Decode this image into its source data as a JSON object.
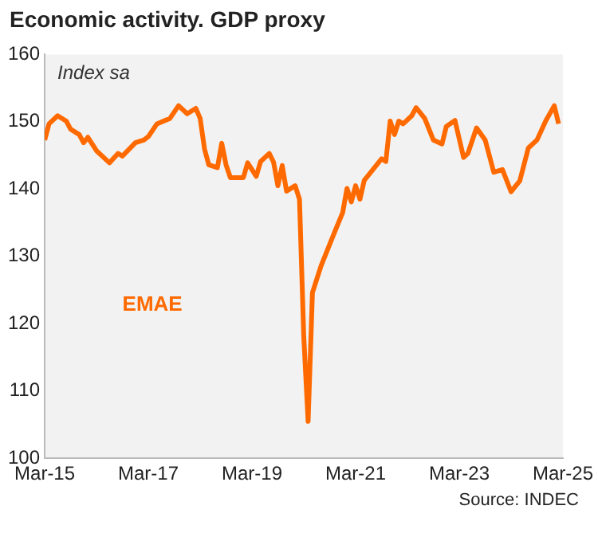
{
  "chart_data": {
    "type": "line",
    "title": "Economic activity. GDP proxy",
    "annotations": [
      "Index sa",
      "Source: INDEC"
    ],
    "x": [
      "2015-03",
      "2015-04",
      "2015-06",
      "2015-08",
      "2015-09",
      "2015-11",
      "2015-12",
      "2016-01",
      "2016-03",
      "2016-06",
      "2016-08",
      "2016-09",
      "2016-12",
      "2017-02",
      "2017-03",
      "2017-05",
      "2017-08",
      "2017-10",
      "2017-12",
      "2018-02",
      "2018-03",
      "2018-04",
      "2018-05",
      "2018-07",
      "2018-08",
      "2018-09",
      "2018-10",
      "2019-01",
      "2019-02",
      "2019-04",
      "2019-05",
      "2019-07",
      "2019-08",
      "2019-09",
      "2019-10",
      "2019-11",
      "2020-01",
      "2020-02",
      "2020-03",
      "2020-04",
      "2020-05",
      "2020-07",
      "2020-10",
      "2020-12",
      "2021-01",
      "2021-02",
      "2021-03",
      "2021-04",
      "2021-05",
      "2021-07",
      "2021-09",
      "2021-10",
      "2021-11",
      "2021-12",
      "2022-01",
      "2022-02",
      "2022-04",
      "2022-05",
      "2022-07",
      "2022-09",
      "2022-11",
      "2022-12",
      "2023-02",
      "2023-04",
      "2023-05",
      "2023-07",
      "2023-09",
      "2023-11",
      "2024-01",
      "2024-03",
      "2024-05",
      "2024-07",
      "2024-09",
      "2024-11",
      "2025-01",
      "2025-02"
    ],
    "series": [
      {
        "name": "EMAE",
        "color": "#ff6a00",
        "values": [
          147.3,
          149.7,
          150.9,
          150.1,
          148.9,
          148.1,
          146.9,
          147.7,
          145.7,
          143.9,
          145.3,
          144.9,
          146.9,
          147.3,
          147.8,
          149.7,
          150.5,
          152.4,
          151.2,
          152,
          150.5,
          146,
          143.6,
          143.2,
          146.8,
          143.6,
          141.7,
          141.7,
          143.9,
          141.9,
          144.1,
          145.3,
          144,
          140.5,
          143.5,
          139.7,
          140.5,
          138.5,
          118,
          105.5,
          124.6,
          128.6,
          133.4,
          136.5,
          140.1,
          138.1,
          140.5,
          138.5,
          141.3,
          142.9,
          144.5,
          144.1,
          150.1,
          148.1,
          150.1,
          149.7,
          150.9,
          152.1,
          150.5,
          147.3,
          146.7,
          149.3,
          150.2,
          144.7,
          145.3,
          149.1,
          147.3,
          142.5,
          142.9,
          139.6,
          141.2,
          146.1,
          147.3,
          150.1,
          152.4,
          149.7
        ]
      }
    ],
    "xlim": [
      "2015-03",
      "2025-03"
    ],
    "xticks": [
      {
        "value": "2015-03",
        "label": "Mar-15"
      },
      {
        "value": "2017-03",
        "label": "Mar-17"
      },
      {
        "value": "2019-03",
        "label": "Mar-19"
      },
      {
        "value": "2021-03",
        "label": "Mar-21"
      },
      {
        "value": "2023-03",
        "label": "Mar-23"
      },
      {
        "value": "2025-03",
        "label": "Mar-25"
      }
    ],
    "ylim": [
      100,
      160
    ],
    "yticks": [
      100,
      110,
      120,
      130,
      140,
      150,
      160
    ],
    "grid": false,
    "legend": false
  }
}
